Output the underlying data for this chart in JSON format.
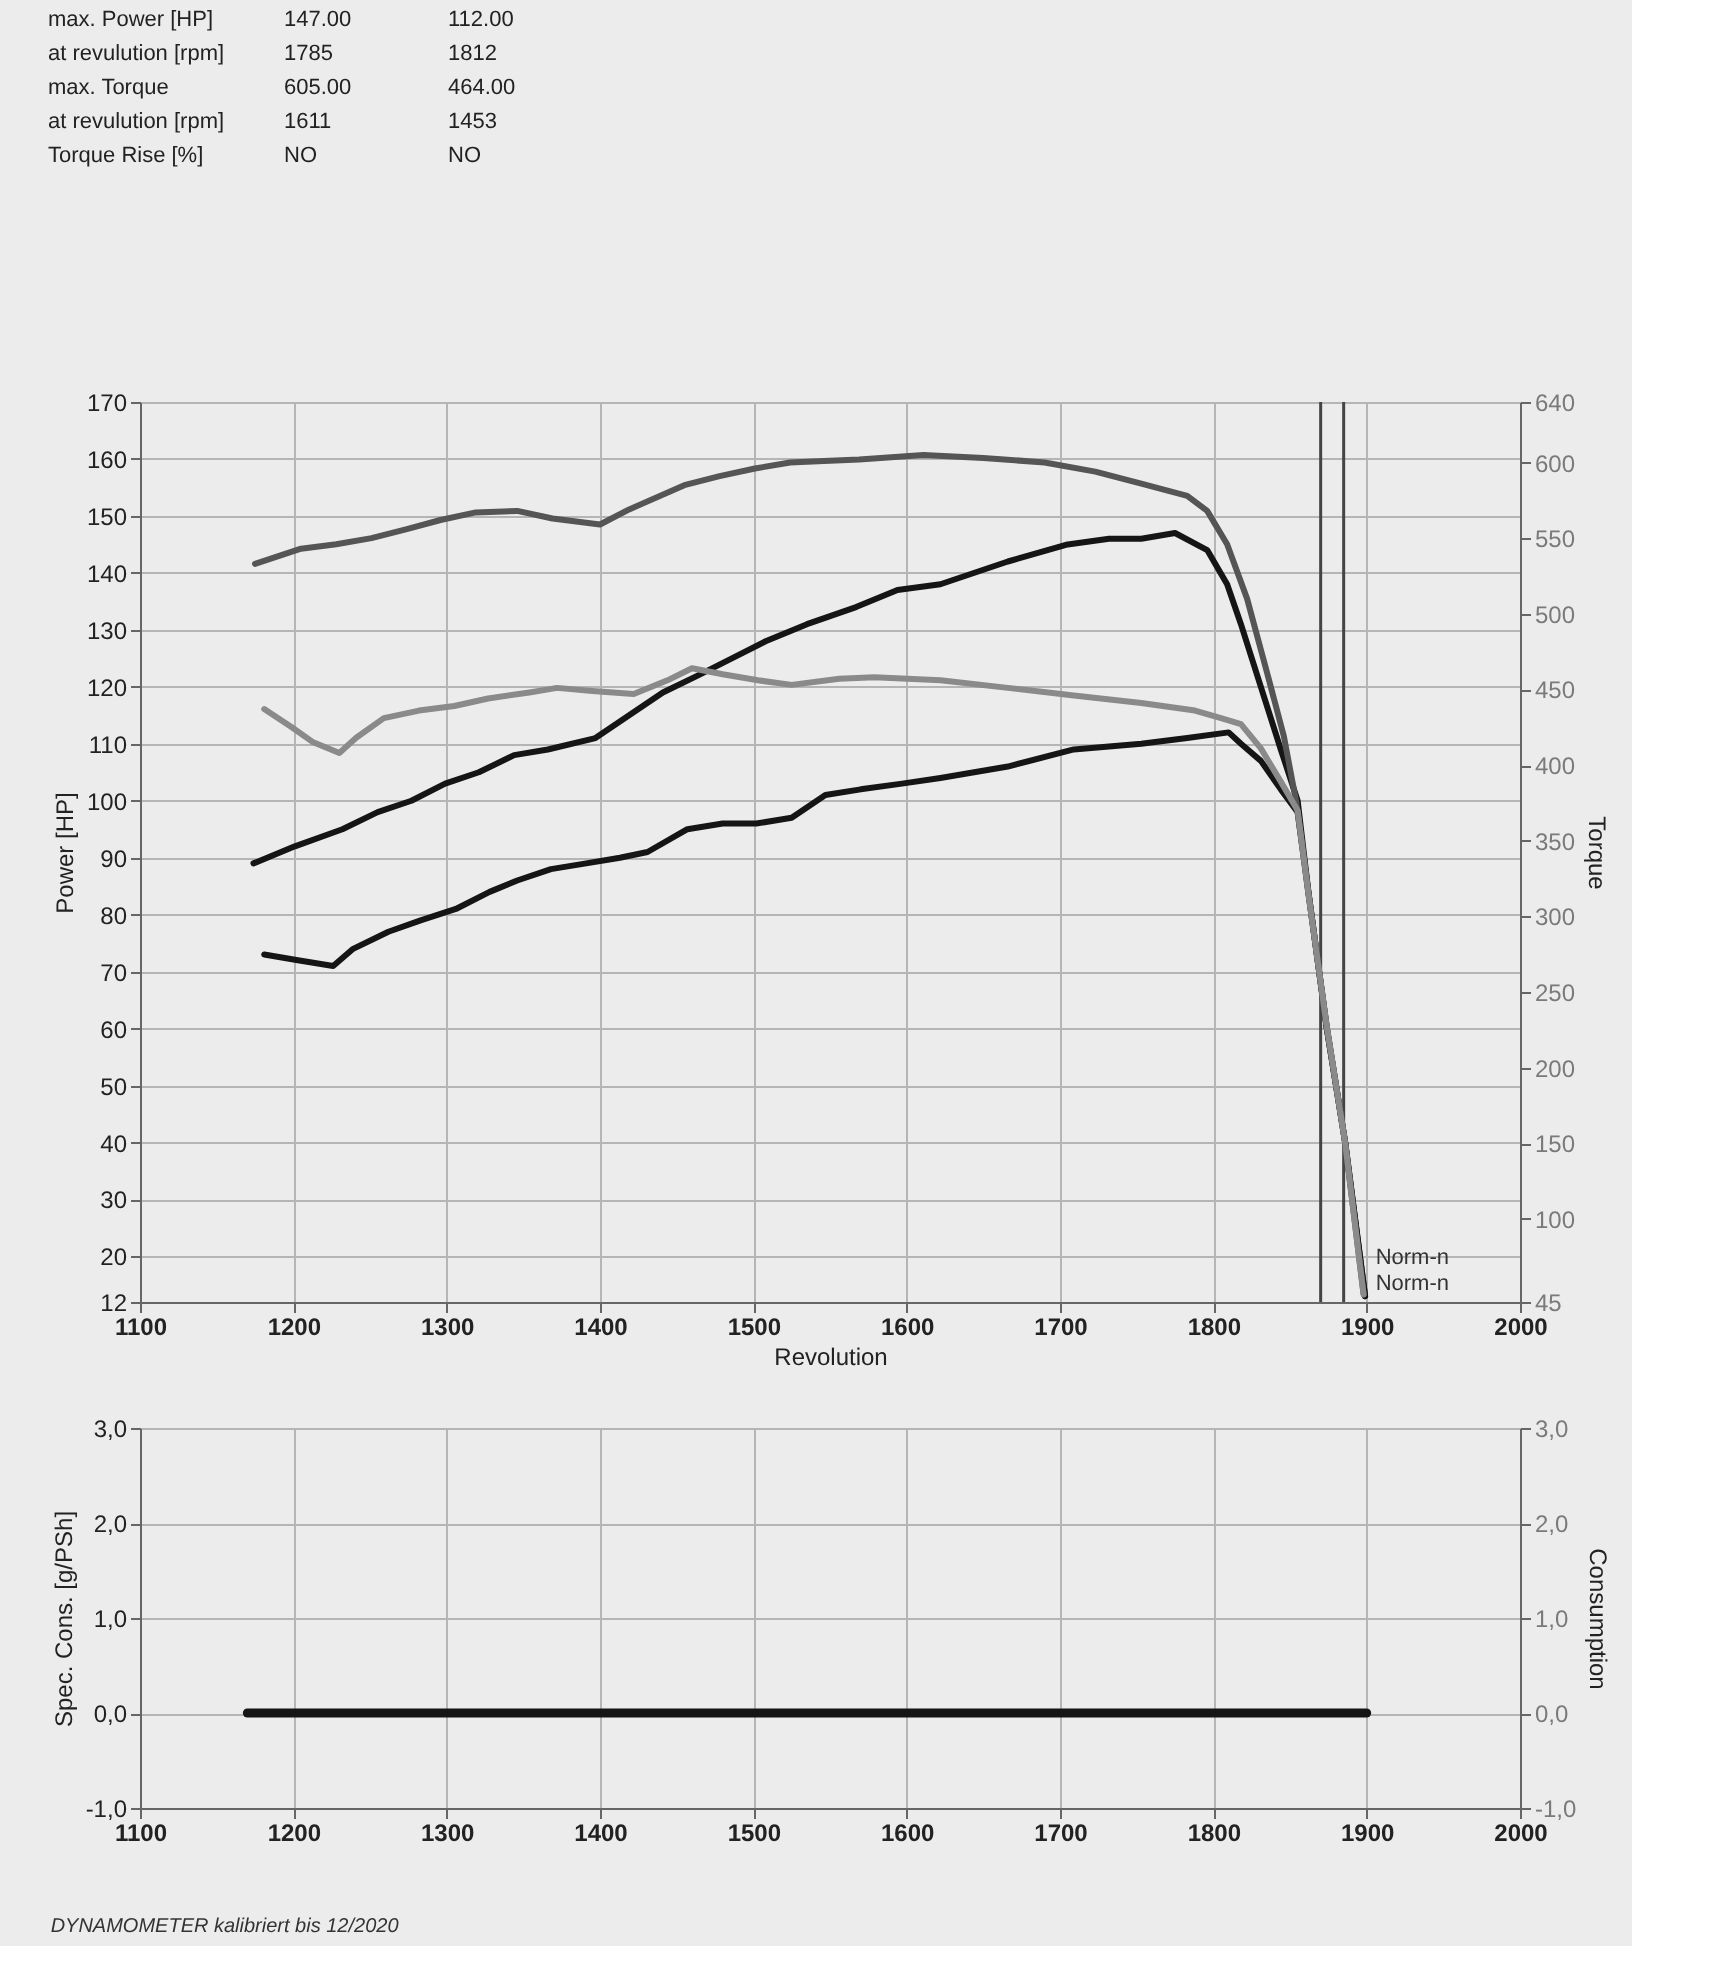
{
  "chart_data": [
    {
      "type": "other",
      "annotations": [
        "max. Power [HP]",
        "147.00",
        "112.00",
        "at revulution [rpm]",
        "1785",
        "1812",
        "max. Torque",
        "605.00",
        "464.00",
        "at revulution [rpm]",
        "1611",
        "1453",
        "Torque Rise [%]",
        "NO",
        "NO"
      ]
    },
    {
      "type": "line",
      "xlabel": "Revolution",
      "ylabel": "Power [HP]",
      "y2label": "Torque",
      "xlim": [
        1100,
        2000
      ],
      "xticks": [
        1100,
        1200,
        1300,
        1400,
        1500,
        1600,
        1700,
        1800,
        1900,
        2000
      ],
      "ylim": [
        12,
        170
      ],
      "yticks": [
        12,
        20,
        30,
        40,
        50,
        60,
        70,
        80,
        90,
        100,
        110,
        120,
        130,
        140,
        150,
        160,
        170
      ],
      "y2lim": [
        45,
        640
      ],
      "y2ticks": [
        45,
        100,
        150,
        200,
        250,
        300,
        350,
        400,
        450,
        500,
        550,
        600,
        640
      ],
      "grid": true,
      "series": [
        {
          "color": "#151515",
          "x": [
            1174,
            1201,
            1232,
            1255,
            1277,
            1299,
            1321,
            1344,
            1366,
            1397,
            1419,
            1441,
            1464,
            1486,
            1508,
            1535,
            1567,
            1594,
            1622,
            1666,
            1705,
            1732,
            1753,
            1775,
            1796,
            1809,
            1818,
            1831,
            1844,
            1855,
            1862,
            1874,
            1886,
            1899
          ],
          "values": [
            89,
            92,
            95,
            98,
            100,
            103,
            105,
            108,
            109,
            111,
            115,
            119,
            122,
            125,
            128,
            131,
            134,
            137,
            138,
            142,
            145,
            146,
            146,
            147,
            144,
            138,
            131,
            120,
            109,
            100,
            84,
            60,
            40,
            13
          ]
        },
        {
          "color": "#151515",
          "x": [
            1181,
            1203,
            1226,
            1239,
            1262,
            1283,
            1306,
            1328,
            1346,
            1368,
            1391,
            1413,
            1431,
            1457,
            1480,
            1502,
            1525,
            1547,
            1570,
            1597,
            1622,
            1666,
            1709,
            1753,
            1783,
            1810,
            1818,
            1831,
            1844,
            1855,
            1862,
            1874,
            1886,
            1899
          ],
          "values": [
            73,
            72,
            71,
            74,
            77,
            79,
            81,
            84,
            86,
            88,
            89,
            90,
            91,
            95,
            96,
            96,
            97,
            101,
            102,
            103,
            104,
            106,
            109,
            110,
            111,
            112,
            110,
            107,
            102,
            98,
            84,
            60,
            40,
            13
          ]
        },
        {
          "color": "#555555",
          "axis": "y2",
          "x": [
            1175,
            1205,
            1228,
            1251,
            1274,
            1296,
            1319,
            1346,
            1369,
            1400,
            1419,
            1455,
            1478,
            1501,
            1524,
            1546,
            1569,
            1611,
            1650,
            1690,
            1723,
            1753,
            1783,
            1796,
            1809,
            1822,
            1834,
            1846,
            1854,
            1862,
            1874,
            1886,
            1898
          ],
          "values": [
            533,
            543,
            546,
            550,
            556,
            562,
            567,
            568,
            563,
            559,
            569,
            585,
            591,
            596,
            600,
            601,
            602,
            605,
            603,
            600,
            594,
            586,
            578,
            568,
            546,
            510,
            465,
            419,
            376,
            315,
            227,
            150,
            50
          ]
        },
        {
          "color": "#8a8a8a",
          "axis": "y2",
          "x": [
            1181,
            1199,
            1213,
            1230,
            1241,
            1259,
            1282,
            1305,
            1327,
            1354,
            1372,
            1395,
            1422,
            1444,
            1460,
            1480,
            1503,
            1525,
            1556,
            1579,
            1622,
            1666,
            1709,
            1753,
            1788,
            1805,
            1818,
            1831,
            1844,
            1855,
            1862,
            1874,
            1886,
            1898
          ],
          "values": [
            437,
            425,
            415,
            408,
            418,
            431,
            436,
            439,
            444,
            448,
            451,
            449,
            447,
            456,
            464,
            460,
            456,
            453,
            457,
            458,
            456,
            451,
            446,
            441,
            436,
            431,
            427,
            411,
            389,
            370,
            315,
            227,
            150,
            50
          ]
        }
      ],
      "ref_lines": [
        {
          "axis": "x",
          "value": 1870,
          "label": "Norm-n",
          "color": "#444444"
        },
        {
          "axis": "x",
          "value": 1885,
          "label": "Norm-n",
          "color": "#444444"
        }
      ]
    },
    {
      "type": "line",
      "ylabel": "Spec. Cons. [g/PSh]",
      "y2label": "Consumption",
      "xlim": [
        1100,
        2000
      ],
      "xticks": [
        1100,
        1200,
        1300,
        1400,
        1500,
        1600,
        1700,
        1800,
        1900,
        2000
      ],
      "ylim": [
        -1,
        3
      ],
      "yticks": [
        {
          "value": -1,
          "label": "-1,0"
        },
        {
          "value": 0,
          "label": "0,0"
        },
        {
          "value": 1,
          "label": "1,0"
        },
        {
          "value": 2,
          "label": "2,0"
        },
        {
          "value": 3,
          "label": "3,0"
        }
      ],
      "y2lim": [
        -1,
        3
      ],
      "y2ticks": [
        {
          "value": -1,
          "label": "-1,0"
        },
        {
          "value": 0,
          "label": "0,0"
        },
        {
          "value": 1,
          "label": "1,0"
        },
        {
          "value": 2,
          "label": "2,0"
        },
        {
          "value": 3,
          "label": "3,0"
        }
      ],
      "grid": true,
      "series": [
        {
          "color": "#111111",
          "x": [
            1170,
            1900
          ],
          "values": [
            0,
            0
          ]
        }
      ],
      "annotations": [
        "DYNAMOMETER kalibriert bis 12/2020"
      ]
    }
  ]
}
